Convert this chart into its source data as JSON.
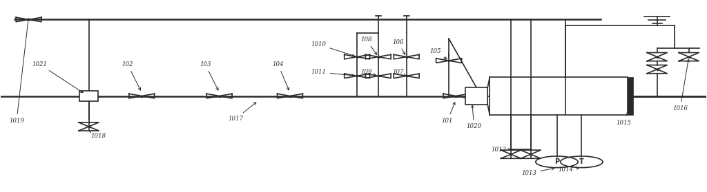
{
  "bg": "#ffffff",
  "lc": "#2a2a2a",
  "lw_main": 1.8,
  "lw": 1.2,
  "fw": 10.24,
  "fh": 2.79,
  "dpi": 100,
  "my": 0.5,
  "by": 0.1,
  "valve_s": 0.018,
  "valve_s_sm": 0.015
}
